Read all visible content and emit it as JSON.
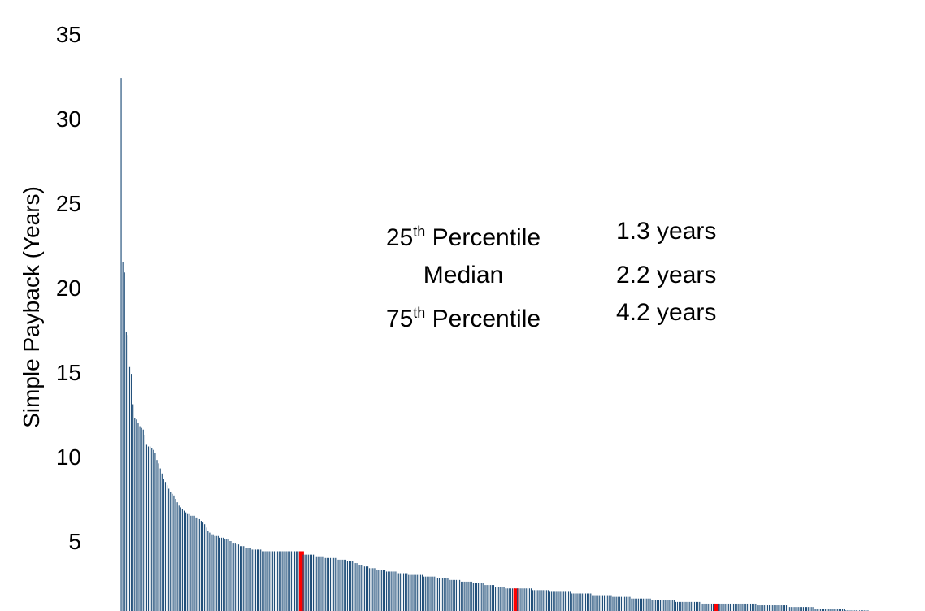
{
  "chart_data": {
    "type": "bar",
    "ylabel": "Simple Payback (Years)",
    "ylim": [
      0,
      35
    ],
    "yticks": [
      "5",
      "10",
      "15",
      "20",
      "25",
      "30",
      "35"
    ],
    "grid": false,
    "colors": {
      "bar": "#1f4e79",
      "highlight": "#ff0000"
    },
    "highlight_indices": [
      106,
      232,
      350
    ],
    "values": [
      32.4,
      21.5,
      20.9,
      17.4,
      17.2,
      15.3,
      14.9,
      13.1,
      12.3,
      12.2,
      12.0,
      11.8,
      11.7,
      11.6,
      11.3,
      10.7,
      10.6,
      10.6,
      10.5,
      10.4,
      10.2,
      9.8,
      9.6,
      9.3,
      9.0,
      8.7,
      8.5,
      8.3,
      8.1,
      7.9,
      7.8,
      7.7,
      7.5,
      7.3,
      7.1,
      7.0,
      6.9,
      6.8,
      6.7,
      6.6,
      6.6,
      6.5,
      6.5,
      6.5,
      6.4,
      6.4,
      6.3,
      6.2,
      6.1,
      6.0,
      5.8,
      5.6,
      5.5,
      5.4,
      5.4,
      5.3,
      5.3,
      5.3,
      5.2,
      5.2,
      5.2,
      5.1,
      5.1,
      5.1,
      5.0,
      5.0,
      4.9,
      4.9,
      4.8,
      4.8,
      4.7,
      4.7,
      4.7,
      4.6,
      4.6,
      4.6,
      4.6,
      4.5,
      4.5,
      4.5,
      4.5,
      4.5,
      4.5,
      4.4,
      4.4,
      4.4,
      4.4,
      4.4,
      4.4,
      4.4,
      4.4,
      4.4,
      4.4,
      4.4,
      4.4,
      4.4,
      4.4,
      4.4,
      4.4,
      4.4,
      4.4,
      4.4,
      4.4,
      4.4,
      4.4,
      4.4,
      4.4,
      4.2,
      4.2,
      4.2,
      4.2,
      4.2,
      4.2,
      4.2,
      4.1,
      4.1,
      4.1,
      4.1,
      4.1,
      4.1,
      4.0,
      4.0,
      4.0,
      4.0,
      4.0,
      4.0,
      4.0,
      3.9,
      3.9,
      3.9,
      3.9,
      3.9,
      3.9,
      3.8,
      3.8,
      3.8,
      3.8,
      3.7,
      3.7,
      3.7,
      3.6,
      3.6,
      3.6,
      3.5,
      3.5,
      3.5,
      3.4,
      3.4,
      3.4,
      3.4,
      3.3,
      3.3,
      3.3,
      3.3,
      3.3,
      3.3,
      3.2,
      3.2,
      3.2,
      3.2,
      3.2,
      3.2,
      3.2,
      3.1,
      3.1,
      3.1,
      3.1,
      3.1,
      3.1,
      3.0,
      3.0,
      3.0,
      3.0,
      3.0,
      3.0,
      3.0,
      3.0,
      3.0,
      2.9,
      2.9,
      2.9,
      2.9,
      2.9,
      2.9,
      2.9,
      2.9,
      2.8,
      2.8,
      2.8,
      2.8,
      2.8,
      2.8,
      2.8,
      2.7,
      2.7,
      2.7,
      2.7,
      2.7,
      2.7,
      2.7,
      2.6,
      2.6,
      2.6,
      2.6,
      2.6,
      2.6,
      2.6,
      2.5,
      2.5,
      2.5,
      2.5,
      2.5,
      2.5,
      2.5,
      2.4,
      2.4,
      2.4,
      2.4,
      2.4,
      2.4,
      2.3,
      2.3,
      2.3,
      2.3,
      2.3,
      2.3,
      2.2,
      2.2,
      2.2,
      2.2,
      2.2,
      2.2,
      2.2,
      2.2,
      2.2,
      2.2,
      2.2,
      2.2,
      2.2,
      2.2,
      2.2,
      2.2,
      2.1,
      2.1,
      2.1,
      2.1,
      2.1,
      2.1,
      2.1,
      2.1,
      2.1,
      2.1,
      2.0,
      2.0,
      2.0,
      2.0,
      2.0,
      2.0,
      2.0,
      2.0,
      2.0,
      2.0,
      2.0,
      2.0,
      2.0,
      1.9,
      1.9,
      1.9,
      1.9,
      1.9,
      1.9,
      1.9,
      1.9,
      1.9,
      1.9,
      1.9,
      1.9,
      1.8,
      1.8,
      1.8,
      1.8,
      1.8,
      1.8,
      1.8,
      1.8,
      1.8,
      1.8,
      1.8,
      1.8,
      1.7,
      1.7,
      1.7,
      1.7,
      1.7,
      1.7,
      1.7,
      1.7,
      1.7,
      1.7,
      1.7,
      1.6,
      1.6,
      1.6,
      1.6,
      1.6,
      1.6,
      1.6,
      1.6,
      1.6,
      1.6,
      1.6,
      1.6,
      1.5,
      1.5,
      1.5,
      1.5,
      1.5,
      1.5,
      1.5,
      1.5,
      1.5,
      1.5,
      1.5,
      1.5,
      1.5,
      1.5,
      1.4,
      1.4,
      1.4,
      1.4,
      1.4,
      1.4,
      1.4,
      1.4,
      1.4,
      1.4,
      1.4,
      1.4,
      1.4,
      1.4,
      1.4,
      1.3,
      1.3,
      1.3,
      1.3,
      1.3,
      1.3,
      1.3,
      1.3,
      1.3,
      1.3,
      1.3,
      1.3,
      1.3,
      1.3,
      1.3,
      1.3,
      1.3,
      1.3,
      1.3,
      1.3,
      1.3,
      1.3,
      1.3,
      1.3,
      1.3,
      1.3,
      1.3,
      1.3,
      1.3,
      1.3,
      1.3,
      1.3,
      1.3,
      1.2,
      1.2,
      1.2,
      1.2,
      1.2,
      1.2,
      1.2,
      1.2,
      1.2,
      1.2,
      1.2,
      1.2,
      1.2,
      1.2,
      1.2,
      1.2,
      1.2,
      1.2,
      1.1,
      1.1,
      1.1,
      1.1,
      1.1,
      1.1,
      1.1,
      1.1,
      1.1,
      1.1,
      1.1,
      1.1,
      1.1,
      1.1,
      1.1,
      1.1,
      1.0,
      1.0,
      1.0,
      1.0,
      1.0,
      1.0,
      1.0,
      1.0,
      1.0,
      1.0,
      1.0,
      1.0,
      1.0,
      1.0,
      1.0,
      1.0,
      1.0,
      1.0,
      0.9,
      0.9,
      0.9,
      0.9,
      0.9,
      0.9,
      0.9,
      0.9,
      0.9,
      0.9,
      0.9,
      0.9,
      0.9,
      0.9,
      0.8,
      0.8,
      0.8,
      0.8,
      0.8,
      0.8,
      0.8,
      0.8,
      0.8,
      0.8,
      0.8,
      0.8,
      0.7,
      0.7,
      0.7,
      0.7,
      0.7,
      0.7,
      0.7,
      0.7,
      0.7,
      0.7,
      0.6,
      0.6,
      0.6,
      0.6,
      0.6,
      0.6,
      0.6,
      0.6,
      0.6,
      0.6
    ],
    "annotations": [
      {
        "num": "25",
        "sup": "th",
        "label": " Percentile",
        "value": "1.3 years"
      },
      {
        "num": "",
        "sup": "",
        "label": "Median",
        "value": "2.2 years"
      },
      {
        "num": "75",
        "sup": "th",
        "label": " Percentile",
        "value": "4.2 years"
      }
    ]
  }
}
